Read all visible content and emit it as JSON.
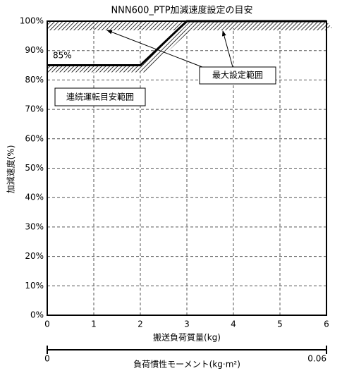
{
  "chart_data": {
    "type": "line",
    "title": "NNN600_PTP加減速度設定の目安",
    "x": [
      0,
      2,
      3,
      6
    ],
    "values": [
      85,
      85,
      100,
      100
    ],
    "color": "#000000",
    "xlim": [
      0,
      6
    ],
    "xticks": [
      0,
      1,
      2,
      3,
      4,
      5,
      6
    ],
    "ylim": [
      0,
      100
    ],
    "yticks": [
      {
        "value": 0,
        "label": "0%"
      },
      {
        "value": 10,
        "label": "10%"
      },
      {
        "value": 20,
        "label": "20%"
      },
      {
        "value": 30,
        "label": "30%"
      },
      {
        "value": 40,
        "label": "40%"
      },
      {
        "value": 50,
        "label": "50%"
      },
      {
        "value": 60,
        "label": "60%"
      },
      {
        "value": 70,
        "label": "70%"
      },
      {
        "value": 80,
        "label": "80%"
      },
      {
        "value": 90,
        "label": "90%"
      },
      {
        "value": 100,
        "label": "100%"
      }
    ],
    "grid": true,
    "xlabel": "搬送負荷質量(kg)",
    "ylabel": "加減速度(%)",
    "x2lim": [
      0,
      0.06
    ],
    "x2ticks": [
      0,
      0.06
    ],
    "x2label": "負荷慣性モーメント(kg·m²)",
    "annotations": [
      "85%",
      "最大設定範囲",
      "連続運転目安範囲"
    ]
  }
}
